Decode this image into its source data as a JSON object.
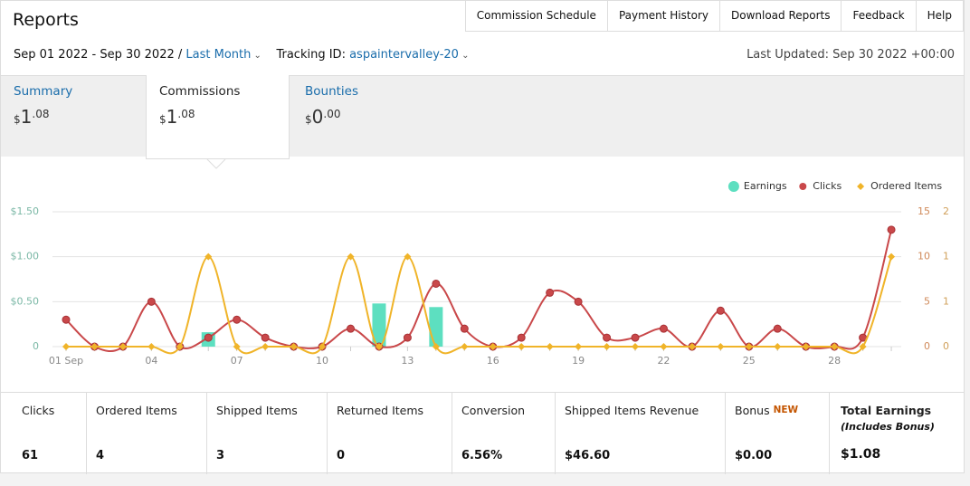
{
  "header": {
    "title": "Reports",
    "nav": [
      "Commission Schedule",
      "Payment History",
      "Download Reports",
      "Feedback",
      "Help"
    ]
  },
  "filters": {
    "date_range": "Sep 01 2022 - Sep 30 2022 /",
    "period": "Last Month",
    "tracking_label": "Tracking ID:",
    "tracking_id": "aspaintervalley-20",
    "last_updated": "Last Updated: Sep 30 2022 +00:00"
  },
  "tabs": [
    {
      "name": "Summary",
      "currency": "$",
      "whole": "1",
      "cents": ".08"
    },
    {
      "name": "Commissions",
      "currency": "$",
      "whole": "1",
      "cents": ".08"
    },
    {
      "name": "Bounties",
      "currency": "$",
      "whole": "0",
      "cents": ".00"
    }
  ],
  "chart_data": {
    "type": "combo",
    "legend": "top-right",
    "grid": true,
    "categories": [
      "01 Sep",
      null,
      null,
      "04",
      null,
      null,
      "07",
      null,
      null,
      "10",
      null,
      null,
      "13",
      null,
      null,
      "16",
      null,
      null,
      "19",
      null,
      null,
      "22",
      null,
      null,
      "25",
      null,
      null,
      "28",
      null,
      null
    ],
    "series": [
      {
        "name": "Earnings",
        "type": "bar",
        "color": "#5ddfc0",
        "values": [
          0,
          0,
          0,
          0,
          0,
          0.16,
          0,
          0,
          0,
          0,
          0,
          0.48,
          0,
          0.44,
          0,
          0,
          0,
          0,
          0,
          0,
          0,
          0,
          0,
          0,
          0,
          0,
          0,
          0,
          0,
          0
        ]
      },
      {
        "name": "Clicks",
        "type": "line",
        "axis": "y2",
        "color": "#c9484a",
        "values": [
          3,
          0,
          0,
          5,
          0,
          1,
          3,
          1,
          0,
          0,
          2,
          0,
          1,
          7,
          2,
          0,
          1,
          6,
          5,
          1,
          1,
          2,
          0,
          4,
          0,
          2,
          0,
          0,
          1,
          13
        ]
      },
      {
        "name": "Ordered Items",
        "type": "line",
        "axis": "y3",
        "color": "#f0b429",
        "values": [
          0,
          0,
          0,
          0,
          0,
          1,
          0,
          0,
          0,
          0,
          1,
          0,
          1,
          0,
          0,
          0,
          0,
          0,
          0,
          0,
          0,
          0,
          0,
          0,
          0,
          0,
          0,
          0,
          0,
          1
        ]
      }
    ],
    "ylim": [
      0,
      1.5
    ],
    "yticks": [
      0,
      {
        "value": 0.5,
        "label": "$0.50"
      },
      {
        "value": 1,
        "label": "$1.00"
      },
      {
        "value": 1.5,
        "label": "$1.50"
      }
    ],
    "y2lim": [
      0,
      15
    ],
    "y2ticks": [
      0,
      5,
      10,
      15
    ],
    "y3lim": [
      0,
      1.5
    ],
    "y3ticks": [
      0,
      {
        "value": 0.5,
        "label": "1"
      },
      1,
      {
        "value": 1.5,
        "label": "2"
      }
    ]
  },
  "stats": [
    {
      "label": "Clicks",
      "value": "61"
    },
    {
      "label": "Ordered Items",
      "value": "4"
    },
    {
      "label": "Shipped Items",
      "value": "3"
    },
    {
      "label": "Returned Items",
      "value": "0"
    },
    {
      "label": "Conversion",
      "value": "6.56%"
    },
    {
      "label": "Shipped Items Revenue",
      "value": "$46.60"
    },
    {
      "label": "Bonus",
      "badge": "NEW",
      "value": "$0.00"
    },
    {
      "label": "Total Earnings",
      "note": "(Includes Bonus)",
      "value": "$1.08"
    }
  ]
}
